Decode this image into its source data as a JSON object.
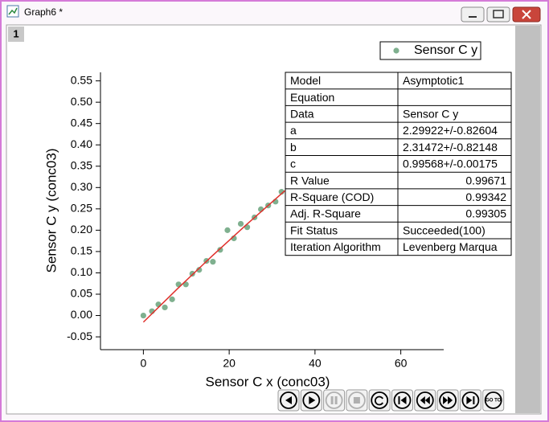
{
  "window": {
    "title": "Graph6 *",
    "layer_tab": "1"
  },
  "chart_data": {
    "type": "scatter",
    "xlabel": "Sensor C x (conc03)",
    "ylabel": "Sensor C y (conc03)",
    "xlim": [
      -10,
      70
    ],
    "ylim": [
      -0.08,
      0.57
    ],
    "xticks": [
      0,
      20,
      40,
      60
    ],
    "yticks": [
      -0.05,
      {
        "value": 0,
        "label": "0.00"
      },
      0.05,
      {
        "value": 0.1,
        "label": "0.10"
      },
      0.15,
      {
        "value": 0.2,
        "label": "0.20"
      },
      0.25,
      {
        "value": 0.3,
        "label": "0.30"
      },
      0.35,
      {
        "value": 0.4,
        "label": "0.40"
      },
      0.45,
      {
        "value": 0.5,
        "label": "0.50"
      },
      0.55
    ],
    "legend": "top-right",
    "series": [
      {
        "name": "Sensor C y",
        "type": "scatter",
        "color": "#7fb08f",
        "x": [
          0,
          2,
          3.5,
          5,
          6.7,
          8.2,
          9.9,
          11.4,
          13,
          14.7,
          16.2,
          17.9,
          19.6,
          21.1,
          22.7,
          24.2,
          25.9,
          27.4,
          29.1,
          30.8,
          32.2
        ],
        "values": [
          0,
          0.01,
          0.026,
          0.019,
          0.038,
          0.073,
          0.073,
          0.098,
          0.107,
          0.128,
          0.126,
          0.154,
          0.2,
          0.181,
          0.215,
          0.207,
          0.23,
          0.249,
          0.258,
          0.267,
          0.29
        ]
      },
      {
        "type": "line",
        "color": "#e0302c",
        "x": [
          0,
          8,
          16,
          24,
          33
        ],
        "values": [
          -0.0155,
          0.0633,
          0.1394,
          0.2129,
          0.2926
        ]
      }
    ]
  },
  "fit_table": {
    "rows": [
      [
        "Model",
        "Asymptotic1"
      ],
      [
        "Equation"
      ],
      [
        "Data",
        "Sensor C y"
      ],
      [
        "a",
        "2.29922+/-0.82604"
      ],
      [
        "b",
        "2.31472+/-0.82148"
      ],
      [
        "c",
        "0.99568+/-0.00175"
      ],
      [
        "R Value",
        "0.99671"
      ],
      [
        "R-Square (COD)",
        "0.99342"
      ],
      [
        "Adj. R-Square",
        "0.99305"
      ],
      [
        "Fit Status",
        "Succeeded(100)"
      ],
      [
        "Iteration Algorithm",
        "Levenberg Marqua"
      ]
    ]
  },
  "toolbar": {
    "goto_label": "GO TO"
  }
}
